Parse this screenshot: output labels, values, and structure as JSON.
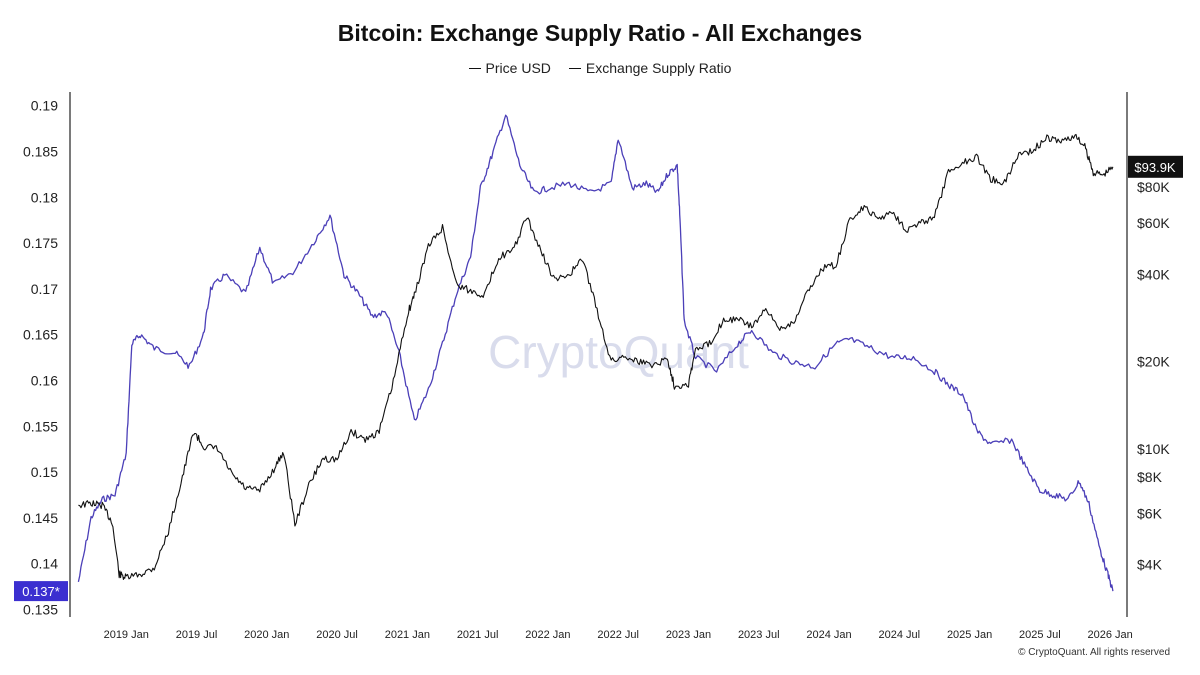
{
  "chart_data": {
    "type": "line",
    "title": "Bitcoin: Exchange Supply Ratio - All Exchanges",
    "legend": [
      "Price USD",
      "Exchange Supply Ratio"
    ],
    "legend_placement": "top-center",
    "watermark": "CryptoQuant",
    "footer": "© CryptoQuant. All rights reserved",
    "colors": {
      "price": "#111111",
      "ratio": "#4b3fb8",
      "current_ratio_badge": "#3b2fd0",
      "current_price_badge": "#111111"
    },
    "x_axis": {
      "ticks": [
        "2019 Jan",
        "2019 Jul",
        "2020 Jan",
        "2020 Jul",
        "2021 Jan",
        "2021 Jul",
        "2022 Jan",
        "2022 Jul",
        "2023 Jan",
        "2023 Jul",
        "2024 Jan",
        "2024 Jul",
        "2025 Jan",
        "2025 Jul",
        "2026 Jan"
      ],
      "range": [
        "2018 Sep",
        "2026 Jan"
      ]
    },
    "y_left": {
      "label": "",
      "ticks": [
        "0.19",
        "0.185",
        "0.18",
        "0.175",
        "0.17",
        "0.165",
        "0.16",
        "0.155",
        "0.15",
        "0.145",
        "0.14",
        "0.135"
      ],
      "range": [
        0.1345,
        0.1915
      ]
    },
    "y_right": {
      "label": "",
      "scale": "log",
      "ticks": [
        "$80K",
        "$60K",
        "$40K",
        "$20K",
        "$10K",
        "$8K",
        "$6K",
        "$4K"
      ],
      "tick_values": [
        80000,
        60000,
        40000,
        20000,
        10000,
        8000,
        6000,
        4000
      ]
    },
    "current_ratio": "0.137*",
    "current_price": "$93.9K",
    "series": [
      {
        "name": "Exchange Supply Ratio",
        "axis": "left",
        "points": [
          [
            2018.66,
            0.138
          ],
          [
            2018.75,
            0.145
          ],
          [
            2018.83,
            0.147
          ],
          [
            2018.92,
            0.1475
          ],
          [
            2019.0,
            0.152
          ],
          [
            2019.04,
            0.164
          ],
          [
            2019.1,
            0.165
          ],
          [
            2019.2,
            0.1635
          ],
          [
            2019.35,
            0.163
          ],
          [
            2019.45,
            0.1615
          ],
          [
            2019.55,
            0.165
          ],
          [
            2019.6,
            0.17
          ],
          [
            2019.7,
            0.1715
          ],
          [
            2019.85,
            0.1695
          ],
          [
            2019.95,
            0.1745
          ],
          [
            2020.05,
            0.1705
          ],
          [
            2020.2,
            0.172
          ],
          [
            2020.35,
            0.1755
          ],
          [
            2020.45,
            0.178
          ],
          [
            2020.55,
            0.1715
          ],
          [
            2020.65,
            0.1695
          ],
          [
            2020.75,
            0.167
          ],
          [
            2020.85,
            0.1675
          ],
          [
            2020.95,
            0.1625
          ],
          [
            2021.05,
            0.1555
          ],
          [
            2021.15,
            0.159
          ],
          [
            2021.25,
            0.164
          ],
          [
            2021.35,
            0.1695
          ],
          [
            2021.45,
            0.1735
          ],
          [
            2021.52,
            0.181
          ],
          [
            2021.6,
            0.1845
          ],
          [
            2021.7,
            0.189
          ],
          [
            2021.8,
            0.1835
          ],
          [
            2021.9,
            0.1805
          ],
          [
            2022.0,
            0.181
          ],
          [
            2022.15,
            0.1815
          ],
          [
            2022.3,
            0.1805
          ],
          [
            2022.45,
            0.1815
          ],
          [
            2022.5,
            0.1865
          ],
          [
            2022.6,
            0.181
          ],
          [
            2022.7,
            0.1815
          ],
          [
            2022.78,
            0.1805
          ],
          [
            2022.85,
            0.1825
          ],
          [
            2022.92,
            0.1835
          ],
          [
            2022.94,
            0.1775
          ],
          [
            2022.97,
            0.1665
          ],
          [
            2023.05,
            0.1625
          ],
          [
            2023.2,
            0.161
          ],
          [
            2023.35,
            0.164
          ],
          [
            2023.45,
            0.1655
          ],
          [
            2023.6,
            0.163
          ],
          [
            2023.75,
            0.162
          ],
          [
            2023.9,
            0.1615
          ],
          [
            2024.05,
            0.164
          ],
          [
            2024.15,
            0.1645
          ],
          [
            2024.3,
            0.1635
          ],
          [
            2024.45,
            0.1625
          ],
          [
            2024.6,
            0.1625
          ],
          [
            2024.75,
            0.161
          ],
          [
            2024.85,
            0.1595
          ],
          [
            2024.95,
            0.1585
          ],
          [
            2025.05,
            0.1545
          ],
          [
            2025.15,
            0.153
          ],
          [
            2025.3,
            0.1535
          ],
          [
            2025.4,
            0.1505
          ],
          [
            2025.5,
            0.148
          ],
          [
            2025.6,
            0.1475
          ],
          [
            2025.7,
            0.147
          ],
          [
            2025.78,
            0.149
          ],
          [
            2025.85,
            0.1465
          ],
          [
            2025.92,
            0.142
          ],
          [
            2025.98,
            0.139
          ],
          [
            2026.02,
            0.137
          ]
        ]
      },
      {
        "name": "Price USD",
        "axis": "right",
        "points": [
          [
            2018.66,
            6400
          ],
          [
            2018.75,
            6500
          ],
          [
            2018.83,
            6400
          ],
          [
            2018.9,
            5600
          ],
          [
            2018.95,
            3700
          ],
          [
            2019.0,
            3600
          ],
          [
            2019.1,
            3700
          ],
          [
            2019.2,
            3900
          ],
          [
            2019.3,
            5200
          ],
          [
            2019.4,
            8000
          ],
          [
            2019.48,
            11500
          ],
          [
            2019.55,
            10200
          ],
          [
            2019.65,
            10000
          ],
          [
            2019.75,
            8200
          ],
          [
            2019.85,
            7300
          ],
          [
            2019.95,
            7200
          ],
          [
            2020.05,
            8500
          ],
          [
            2020.12,
            9800
          ],
          [
            2020.2,
            5500
          ],
          [
            2020.3,
            7500
          ],
          [
            2020.4,
            9300
          ],
          [
            2020.5,
            9200
          ],
          [
            2020.6,
            11500
          ],
          [
            2020.7,
            10800
          ],
          [
            2020.8,
            11500
          ],
          [
            2020.9,
            17000
          ],
          [
            2021.0,
            29000
          ],
          [
            2021.05,
            34000
          ],
          [
            2021.15,
            50000
          ],
          [
            2021.25,
            58000
          ],
          [
            2021.35,
            37000
          ],
          [
            2021.45,
            35000
          ],
          [
            2021.55,
            34000
          ],
          [
            2021.65,
            46000
          ],
          [
            2021.75,
            48000
          ],
          [
            2021.85,
            63000
          ],
          [
            2021.95,
            48000
          ],
          [
            2022.05,
            38000
          ],
          [
            2022.15,
            40000
          ],
          [
            2022.25,
            45000
          ],
          [
            2022.35,
            30000
          ],
          [
            2022.45,
            20000
          ],
          [
            2022.55,
            21000
          ],
          [
            2022.65,
            20000
          ],
          [
            2022.75,
            19500
          ],
          [
            2022.85,
            20500
          ],
          [
            2022.9,
            16500
          ],
          [
            2023.0,
            16800
          ],
          [
            2023.05,
            22000
          ],
          [
            2023.15,
            23000
          ],
          [
            2023.25,
            28000
          ],
          [
            2023.35,
            28000
          ],
          [
            2023.45,
            26500
          ],
          [
            2023.55,
            30000
          ],
          [
            2023.65,
            26000
          ],
          [
            2023.75,
            27500
          ],
          [
            2023.85,
            35000
          ],
          [
            2023.95,
            42000
          ],
          [
            2024.05,
            43000
          ],
          [
            2024.15,
            62000
          ],
          [
            2024.25,
            68000
          ],
          [
            2024.35,
            62000
          ],
          [
            2024.45,
            66000
          ],
          [
            2024.55,
            57000
          ],
          [
            2024.65,
            60000
          ],
          [
            2024.75,
            63000
          ],
          [
            2024.85,
            90000
          ],
          [
            2024.95,
            97000
          ],
          [
            2025.05,
            102000
          ],
          [
            2025.15,
            85000
          ],
          [
            2025.25,
            83000
          ],
          [
            2025.35,
            104000
          ],
          [
            2025.45,
            107000
          ],
          [
            2025.55,
            118000
          ],
          [
            2025.65,
            115000
          ],
          [
            2025.75,
            120000
          ],
          [
            2025.82,
            110000
          ],
          [
            2025.88,
            90000
          ],
          [
            2025.95,
            88000
          ],
          [
            2026.02,
            93900
          ]
        ]
      }
    ]
  }
}
